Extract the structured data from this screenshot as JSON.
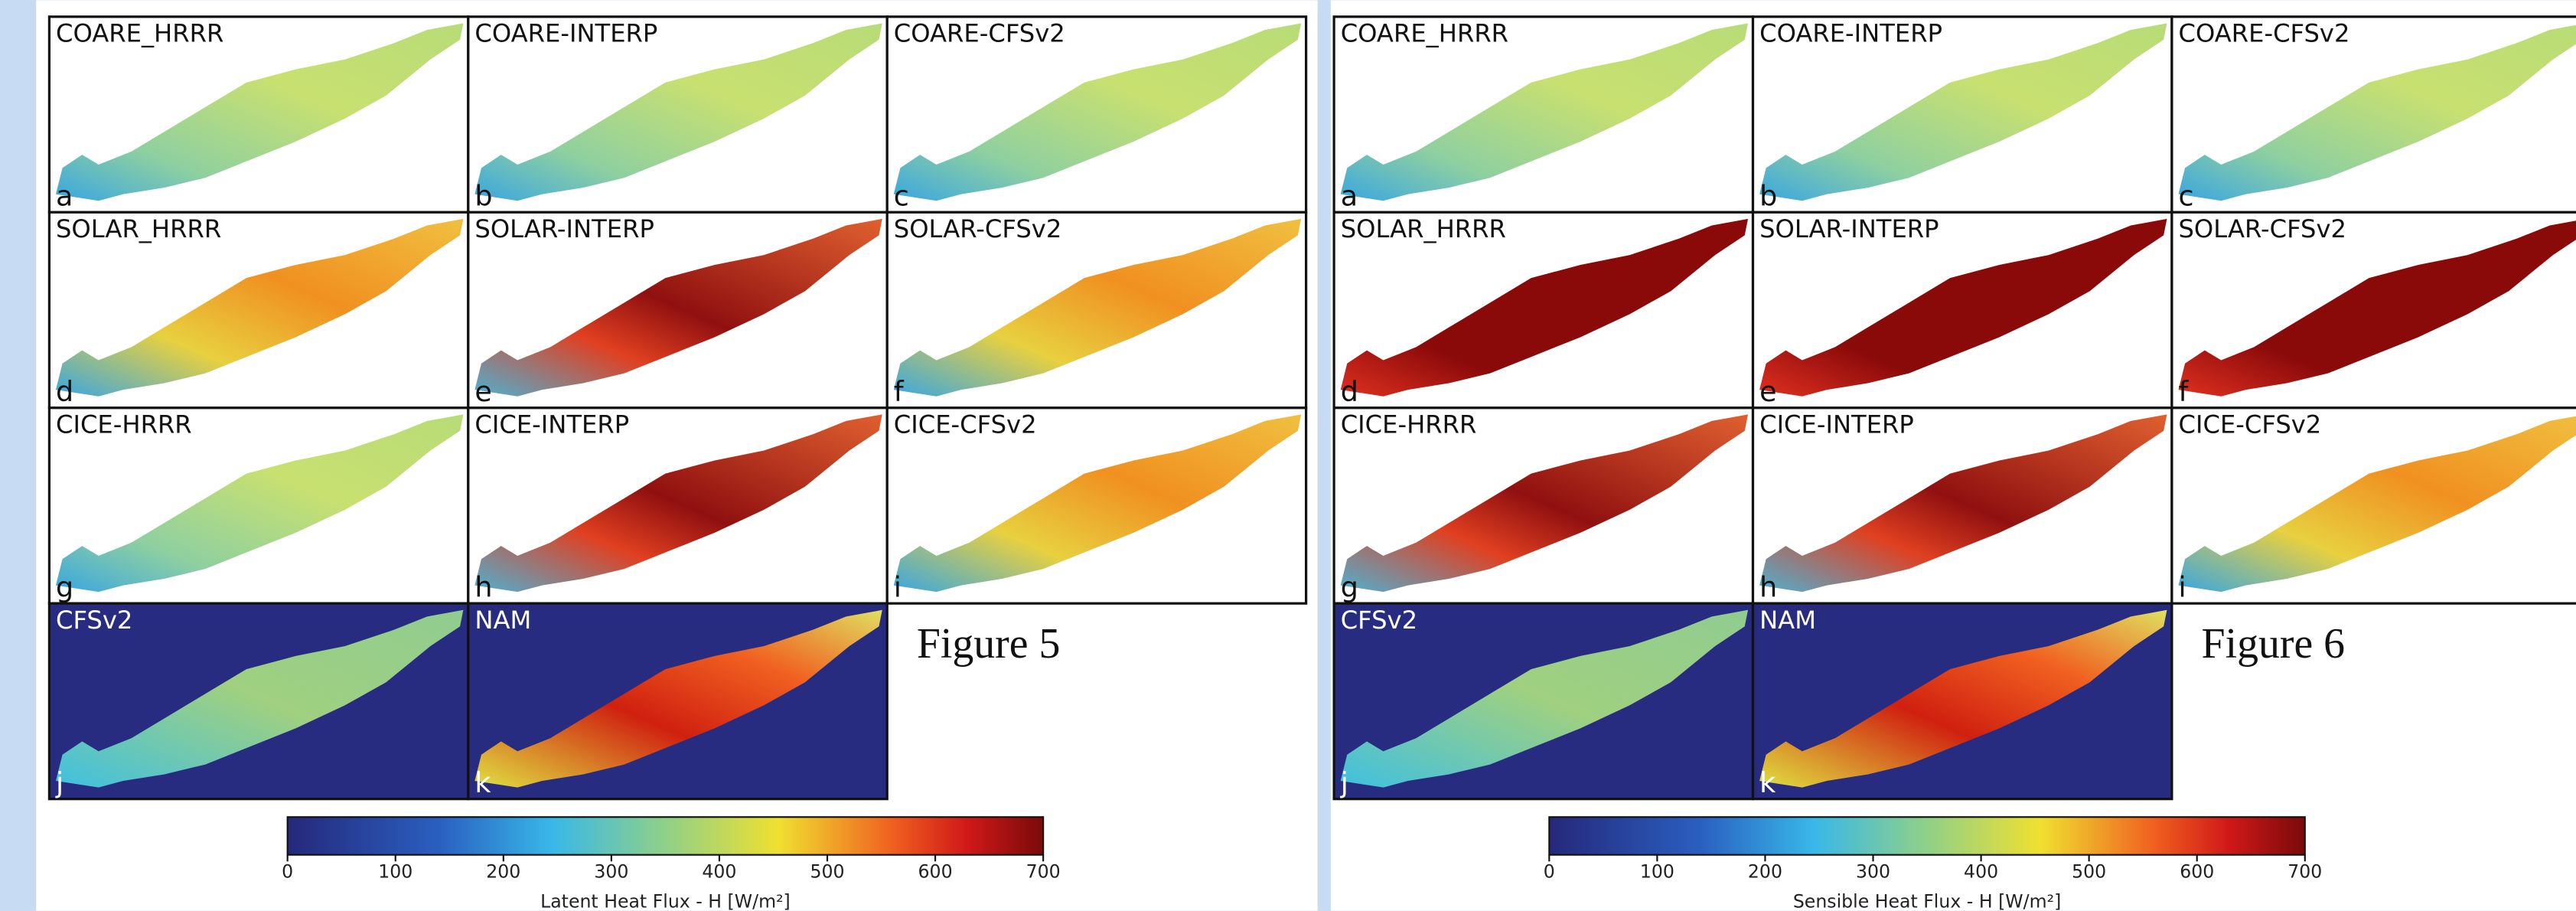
{
  "figures": [
    {
      "panels": [
        {
          "title": "COARE_HRRR",
          "letter": "a"
        },
        {
          "title": "COARE-INTERP",
          "letter": "b"
        },
        {
          "title": "COARE-CFSv2",
          "letter": "c"
        },
        {
          "title": "SOLAR_HRRR",
          "letter": "d"
        },
        {
          "title": "SOLAR-INTERP",
          "letter": "e"
        },
        {
          "title": "SOLAR-CFSv2",
          "letter": "f"
        },
        {
          "title": "CICE-HRRR",
          "letter": "g"
        },
        {
          "title": "CICE-INTERP",
          "letter": "h"
        },
        {
          "title": "CICE-CFSv2",
          "letter": "i"
        },
        {
          "title": "CFSv2",
          "letter": "j"
        },
        {
          "title": "NAM",
          "letter": "k"
        }
      ],
      "figure_label": "Figure 5",
      "colorbar_ticks": [
        0,
        100,
        200,
        300,
        400,
        500,
        600,
        700
      ],
      "colorbar_label": "Latent Heat Flux - H [W/m²]"
    },
    {
      "panels": [
        {
          "title": "COARE_HRRR",
          "letter": "a"
        },
        {
          "title": "COARE-INTERP",
          "letter": "b"
        },
        {
          "title": "COARE-CFSv2",
          "letter": "c"
        },
        {
          "title": "SOLAR_HRRR",
          "letter": "d"
        },
        {
          "title": "SOLAR-INTERP",
          "letter": "e"
        },
        {
          "title": "SOLAR-CFSv2",
          "letter": "f"
        },
        {
          "title": "CICE-HRRR",
          "letter": "g"
        },
        {
          "title": "CICE-INTERP",
          "letter": "h"
        },
        {
          "title": "CICE-CFSv2",
          "letter": "i"
        },
        {
          "title": "CFSv2",
          "letter": "j"
        },
        {
          "title": "NAM",
          "letter": "k"
        }
      ],
      "figure_label": "Figure 6",
      "colorbar_ticks": [
        0,
        100,
        200,
        300,
        400,
        500,
        600,
        700
      ],
      "colorbar_label": "Sensible Heat Flux - H [W/m²]"
    }
  ]
}
